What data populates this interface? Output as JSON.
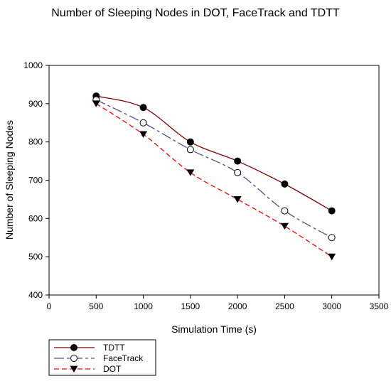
{
  "chart_data": {
    "type": "line",
    "title": "Number of Sleeping Nodes in DOT, FaceTrack and TDTT",
    "xlabel": "Simulation Time (s)",
    "ylabel": "Number of Sleeping Nodes",
    "xlim": [
      0,
      3500
    ],
    "ylim": [
      400,
      1000
    ],
    "x_ticks": [
      0,
      500,
      1000,
      1500,
      2000,
      2500,
      3000,
      3500
    ],
    "y_ticks": [
      400,
      500,
      600,
      700,
      800,
      900,
      1000
    ],
    "grid": false,
    "legend_position": "bottom-left, below plot",
    "x": [
      500,
      1000,
      1500,
      2000,
      2500,
      3000
    ],
    "series": [
      {
        "name": "TDTT",
        "values": [
          920,
          890,
          800,
          750,
          690,
          620
        ],
        "color": "#800000",
        "dash": "solid",
        "marker": "filled-circle"
      },
      {
        "name": "FaceTrack",
        "values": [
          910,
          850,
          780,
          720,
          620,
          550
        ],
        "color": "#5a4a8c",
        "dash": "long-dash",
        "marker": "open-circle"
      },
      {
        "name": "DOT",
        "values": [
          900,
          820,
          720,
          650,
          580,
          500
        ],
        "color": "#ff0000",
        "dash": "dashed",
        "marker": "filled-triangle-down"
      }
    ]
  }
}
